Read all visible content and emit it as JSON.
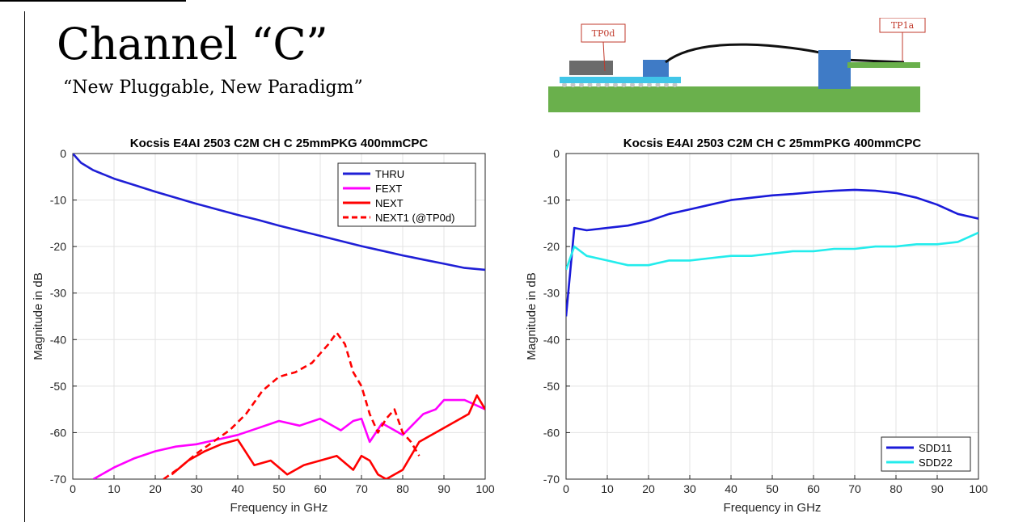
{
  "slide": {
    "title": "Channel “C”",
    "subtitle": "“New Pluggable, New Paradigm”"
  },
  "diagram": {
    "labels": [
      "TP0d",
      "TP1a"
    ],
    "colors": {
      "board": "#6ab04c",
      "substrate": "#41c6e8",
      "connector": "#3f7bc6",
      "chip": "#666666",
      "cable": "#000000",
      "label": "#c0392b"
    }
  },
  "chart_data": [
    {
      "type": "line",
      "title": "Kocsis E4AI 2503 C2M CH C 25mmPKG 400mmCPC",
      "xlabel": "Frequency in GHz",
      "ylabel": "Magnitude in dB",
      "xlim": [
        0,
        100
      ],
      "ylim": [
        -70,
        0
      ],
      "xticks": [
        0,
        10,
        20,
        30,
        40,
        50,
        60,
        70,
        80,
        90,
        100
      ],
      "yticks": [
        0,
        -10,
        -20,
        -30,
        -40,
        -50,
        -60,
        -70
      ],
      "grid": true,
      "legend": "top-right",
      "series": [
        {
          "name": "THRU",
          "color": "#1f1fd6",
          "style": "solid",
          "x": [
            0,
            2,
            5,
            10,
            15,
            20,
            25,
            30,
            35,
            40,
            45,
            50,
            55,
            60,
            65,
            70,
            75,
            80,
            85,
            90,
            95,
            100
          ],
          "y": [
            0,
            -2,
            -3.6,
            -5.4,
            -6.8,
            -8.2,
            -9.5,
            -10.8,
            -12,
            -13.2,
            -14.3,
            -15.5,
            -16.6,
            -17.7,
            -18.8,
            -19.9,
            -20.9,
            -21.9,
            -22.8,
            -23.7,
            -24.6,
            -25
          ]
        },
        {
          "name": "FEXT",
          "color": "#ff00ff",
          "style": "solid",
          "x": [
            5,
            10,
            15,
            20,
            25,
            30,
            35,
            40,
            45,
            50,
            55,
            60,
            65,
            68,
            70,
            72,
            75,
            80,
            85,
            88,
            90,
            95,
            100
          ],
          "y": [
            -70,
            -67.5,
            -65.5,
            -64,
            -63,
            -62.5,
            -61.5,
            -60.5,
            -59,
            -57.5,
            -58.5,
            -57,
            -59.5,
            -57.5,
            -57,
            -62,
            -58,
            -60.5,
            -56,
            -55,
            -53,
            -53,
            -55
          ]
        },
        {
          "name": "NEXT",
          "color": "#ff0000",
          "style": "solid",
          "x": [
            24,
            28,
            32,
            36,
            40,
            44,
            48,
            52,
            56,
            60,
            64,
            68,
            70,
            72,
            74,
            76,
            80,
            84,
            88,
            92,
            96,
            98,
            100
          ],
          "y": [
            -69,
            -66,
            -64,
            -62.5,
            -61.5,
            -67,
            -66,
            -69,
            -67,
            -66,
            -65,
            -68,
            -65,
            -66,
            -69,
            -70,
            -68,
            -62,
            -60,
            -58,
            -56,
            -52,
            -55
          ]
        },
        {
          "name": "NEXT1 (@TP0d)",
          "color": "#ff0000",
          "style": "dashed",
          "x": [
            22,
            26,
            30,
            34,
            38,
            42,
            46,
            50,
            54,
            58,
            62,
            64,
            66,
            68,
            70,
            72,
            74,
            76,
            78,
            80,
            82,
            84
          ],
          "y": [
            -70,
            -67.5,
            -64.5,
            -62,
            -59.5,
            -56,
            -51,
            -48,
            -47,
            -45,
            -41,
            -38.5,
            -41,
            -47,
            -50,
            -56,
            -60,
            -57,
            -55,
            -60,
            -62,
            -65
          ]
        }
      ]
    },
    {
      "type": "line",
      "title": "Kocsis E4AI 2503 C2M CH C 25mmPKG 400mmCPC",
      "xlabel": "Frequency in GHz",
      "ylabel": "Magnitude in dB",
      "xlim": [
        0,
        100
      ],
      "ylim": [
        -70,
        0
      ],
      "xticks": [
        0,
        10,
        20,
        30,
        40,
        50,
        60,
        70,
        80,
        90,
        100
      ],
      "yticks": [
        0,
        -10,
        -20,
        -30,
        -40,
        -50,
        -60,
        -70
      ],
      "grid": true,
      "legend": "bottom-right",
      "series": [
        {
          "name": "SDD11",
          "color": "#1a1ad9",
          "style": "solid",
          "x": [
            0,
            2,
            5,
            10,
            15,
            20,
            25,
            30,
            35,
            40,
            45,
            50,
            55,
            60,
            65,
            70,
            75,
            80,
            85,
            90,
            95,
            100
          ],
          "y": [
            -35,
            -16,
            -16.5,
            -16,
            -15.5,
            -14.5,
            -13,
            -12,
            -11,
            -10,
            -9.5,
            -9,
            -8.7,
            -8.3,
            -8,
            -7.8,
            -8,
            -8.5,
            -9.5,
            -11,
            -13,
            -14
          ]
        },
        {
          "name": "SDD22",
          "color": "#23ecec",
          "style": "solid",
          "x": [
            0,
            2,
            5,
            10,
            15,
            20,
            25,
            30,
            35,
            40,
            45,
            50,
            55,
            60,
            65,
            70,
            75,
            80,
            85,
            90,
            95,
            100
          ],
          "y": [
            -25,
            -20,
            -22,
            -23,
            -24,
            -24,
            -23,
            -23,
            -22.5,
            -22,
            -22,
            -21.5,
            -21,
            -21,
            -20.5,
            -20.5,
            -20,
            -20,
            -19.5,
            -19.5,
            -19,
            -17
          ]
        }
      ]
    }
  ]
}
